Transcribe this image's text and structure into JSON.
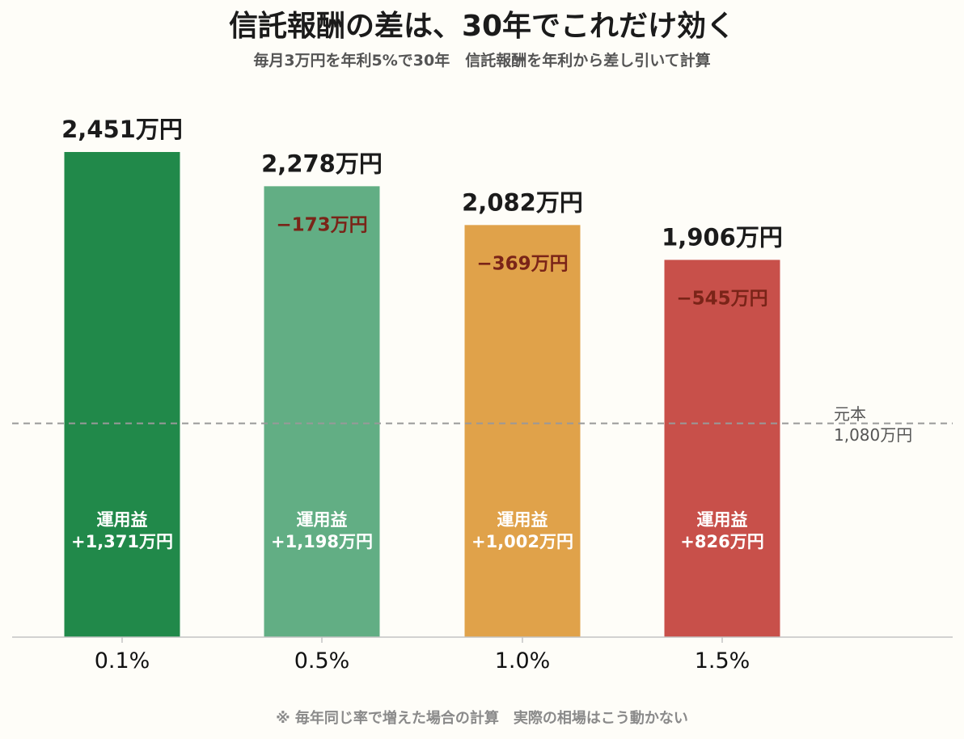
{
  "chart_data": {
    "type": "bar",
    "title": "信託報酬の差は、30年でこれだけ効く",
    "subtitle": "毎月3万円を年利5%で30年　信託報酬を年利から差し引いて計算",
    "categories": [
      "0.1%",
      "0.5%",
      "1.0%",
      "1.5%"
    ],
    "values": [
      2451,
      2278,
      2082,
      1906
    ],
    "value_labels": [
      "2,451万円",
      "2,278万円",
      "2,082万円",
      "1,906万円"
    ],
    "differences": [
      "",
      "−173万円",
      "−369万円",
      "−545万円"
    ],
    "gain_title": "運用益",
    "gains": [
      "+1,371万円",
      "+1,198万円",
      "+1,002万円",
      "+826万円"
    ],
    "colors": [
      "#21894a",
      "#62ae84",
      "#e0a24a",
      "#c8504a"
    ],
    "ylim": [
      0,
      2700
    ],
    "grid": false,
    "reference": {
      "value": 1080,
      "label_line1": "元本",
      "label_line2": "1,080万円",
      "color": "#999999"
    },
    "footnote": "※ 毎年同じ率で増えた場合の計算　実際の相場はこう動かない"
  }
}
